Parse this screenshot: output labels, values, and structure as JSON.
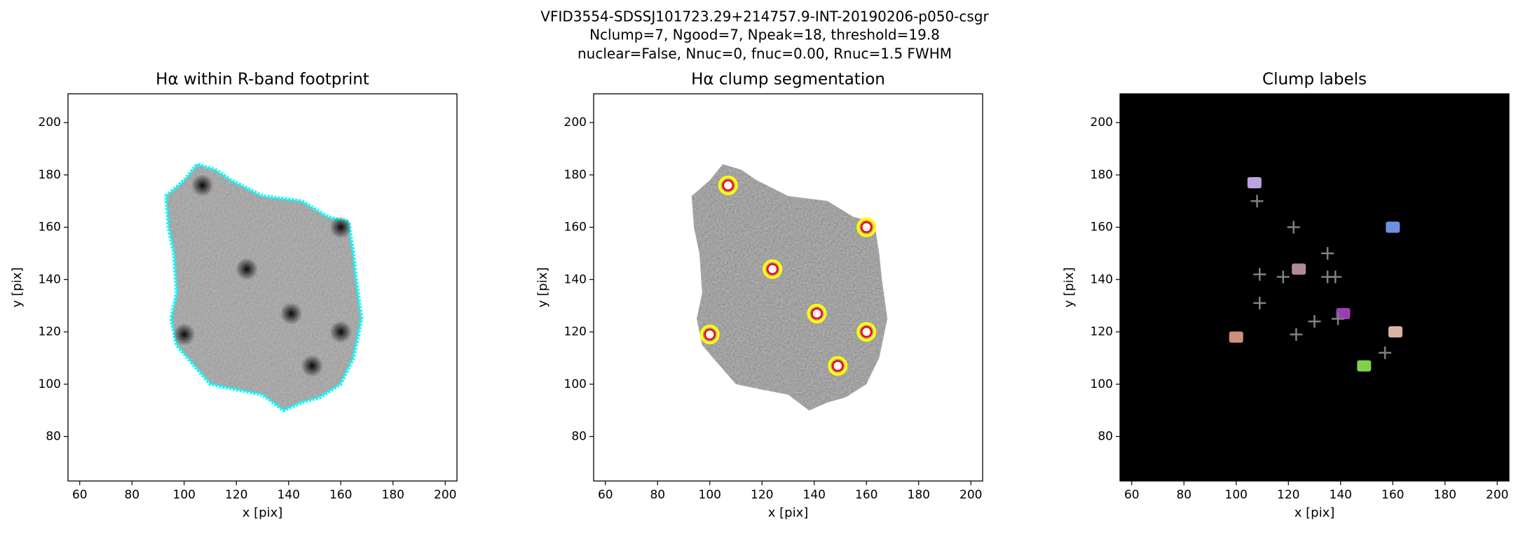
{
  "suptitle": [
    "VFID3554-SDSSJ101723.29+214757.9-INT-20190206-p050-csgr",
    "Nclump=7, Ngood=7, Npeak=18, threshold=19.8",
    "nuclear=False, Nnuc=0, fnuc=0.00, Rnuc=1.5 FWHM"
  ],
  "chart_data": [
    {
      "type": "image",
      "title": "Hα within R-band footprint",
      "xlabel": "x [pix]",
      "ylabel": "y [pix]",
      "xlim": [
        55.5,
        204.5
      ],
      "ylim": [
        63,
        211
      ],
      "xticks": [
        60,
        80,
        100,
        120,
        140,
        160,
        180,
        200
      ],
      "yticks": [
        80,
        100,
        120,
        140,
        160,
        180,
        200
      ],
      "contour_color": "#00ffff"
    },
    {
      "type": "image",
      "title": "Hα clump segmentation",
      "xlabel": "x [pix]",
      "ylabel": "y [pix]",
      "xlim": [
        55.5,
        204.5
      ],
      "ylim": [
        63,
        211
      ],
      "xticks": [
        60,
        80,
        100,
        120,
        140,
        160,
        180,
        200
      ],
      "yticks": [
        80,
        100,
        120,
        140,
        160,
        180,
        200
      ],
      "contour_color": "#ffff00",
      "marker_color": "#ff0000",
      "clumps": {
        "x": [
          107,
          160,
          124,
          141,
          160,
          100,
          149
        ],
        "y": [
          176,
          160,
          144,
          127,
          120,
          119,
          107
        ]
      }
    },
    {
      "type": "labels",
      "title": "Clump labels",
      "xlabel": "x [pix]",
      "ylabel": "y [pix]",
      "xlim": [
        55.5,
        204.5
      ],
      "ylim": [
        63,
        211
      ],
      "xticks": [
        60,
        80,
        100,
        120,
        140,
        160,
        180,
        200
      ],
      "yticks": [
        80,
        100,
        120,
        140,
        160,
        180,
        200
      ],
      "background": "#000000",
      "clumps": {
        "x": [
          107,
          160,
          124,
          141,
          161,
          100,
          149
        ],
        "y": [
          177,
          160,
          144,
          127,
          120,
          118,
          107
        ],
        "colors": [
          "#b9a3e0",
          "#6f8fe0",
          "#b08a96",
          "#9b3fb0",
          "#d8b3a6",
          "#d08f7d",
          "#7ed24a"
        ]
      },
      "peaks": {
        "color": "#808080",
        "x": [
          108,
          122,
          135,
          109,
          118,
          135,
          138,
          109,
          130,
          123,
          139,
          157
        ],
        "y": [
          170,
          160,
          150,
          142,
          141,
          141,
          141,
          131,
          124,
          119,
          125,
          112
        ]
      }
    }
  ]
}
